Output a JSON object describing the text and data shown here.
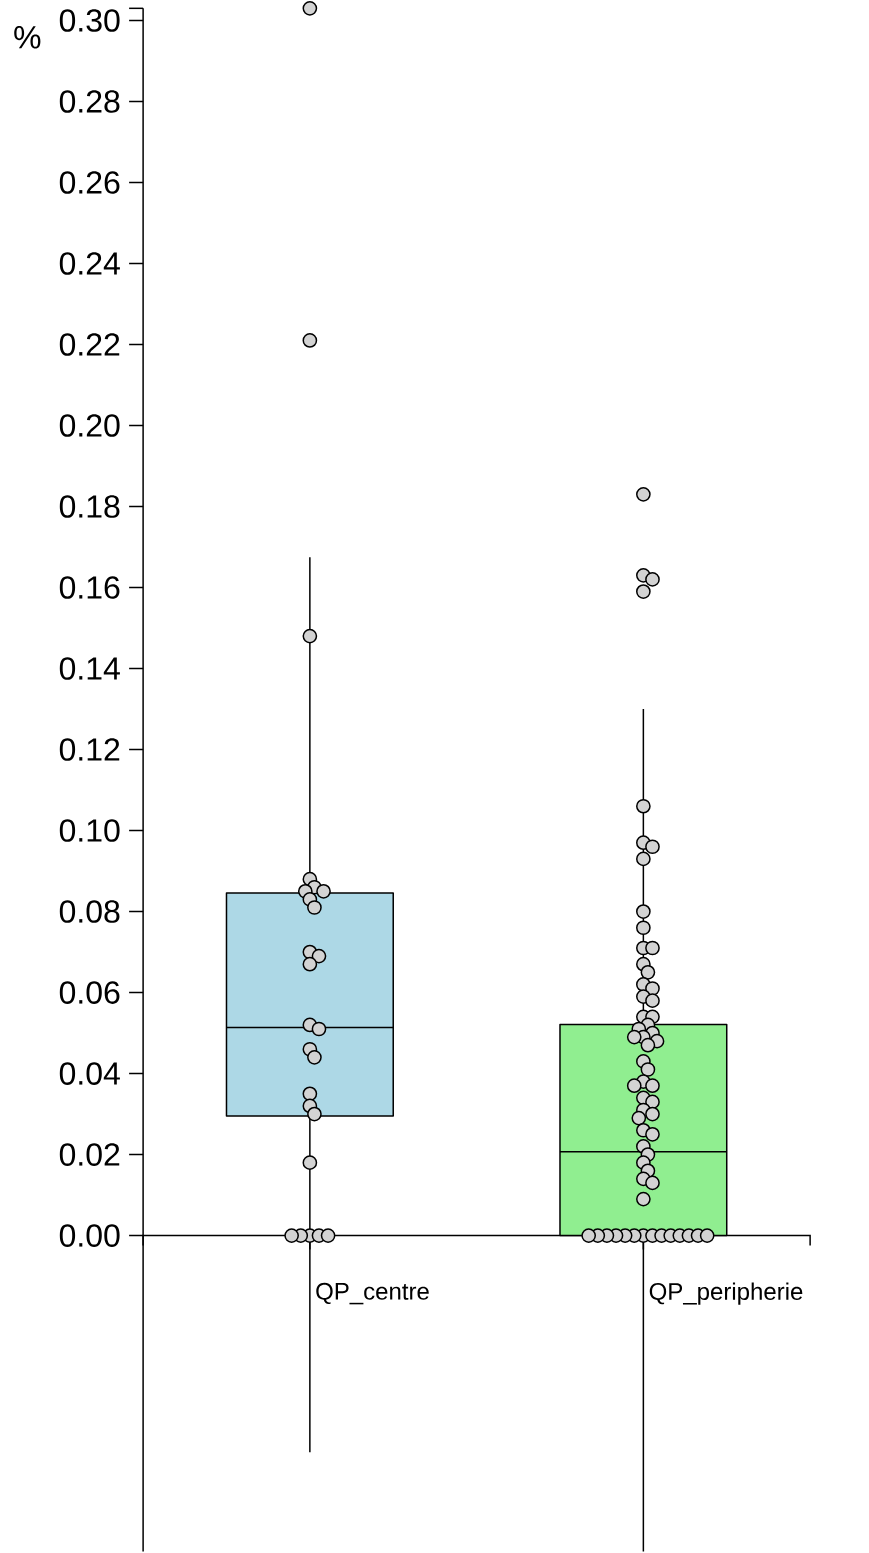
{
  "chart_data": {
    "type": "box",
    "ylabel": "%",
    "categories": [
      "QP_centre",
      "QP_peripherie"
    ],
    "colors": [
      "#add8e6",
      "#90ee90"
    ],
    "boxes": [
      {
        "low": -0.0535,
        "q1": 0.0295,
        "median": 0.0514,
        "q3": 0.0846,
        "high": 0.1675
      },
      {
        "low": -0.078,
        "q1": 0,
        "median": 0.0207,
        "q3": 0.0521,
        "high": 0.13
      }
    ],
    "series": [
      {
        "type": "scatter",
        "color": "#d3d3d3",
        "x": [
          "QP_centre",
          "QP_centre",
          "QP_centre",
          "QP_centre",
          "QP_centre",
          "QP_centre",
          "QP_centre",
          "QP_centre",
          "QP_centre",
          "QP_centre",
          "QP_centre",
          "QP_centre",
          "QP_centre",
          "QP_centre",
          "QP_centre",
          "QP_centre",
          "QP_centre",
          "QP_centre",
          "QP_centre",
          "QP_centre",
          "QP_centre",
          "QP_centre",
          "QP_centre",
          "QP_centre",
          "QP_centre",
          "QP_peripherie",
          "QP_peripherie",
          "QP_peripherie",
          "QP_peripherie",
          "QP_peripherie",
          "QP_peripherie",
          "QP_peripherie",
          "QP_peripherie",
          "QP_peripherie",
          "QP_peripherie",
          "QP_peripherie",
          "QP_peripherie",
          "QP_peripherie",
          "QP_peripherie",
          "QP_peripherie",
          "QP_peripherie",
          "QP_peripherie",
          "QP_peripherie",
          "QP_peripherie",
          "QP_peripherie",
          "QP_peripherie",
          "QP_peripherie",
          "QP_peripherie",
          "QP_peripherie",
          "QP_peripherie",
          "QP_peripherie",
          "QP_peripherie",
          "QP_peripherie",
          "QP_peripherie",
          "QP_peripherie",
          "QP_peripherie",
          "QP_peripherie",
          "QP_peripherie",
          "QP_peripherie",
          "QP_peripherie",
          "QP_peripherie",
          "QP_peripherie",
          "QP_peripherie",
          "QP_peripherie",
          "QP_peripherie",
          "QP_peripherie",
          "QP_peripherie",
          "QP_peripherie",
          "QP_peripherie",
          "QP_peripherie",
          "QP_peripherie",
          "QP_peripherie",
          "QP_peripherie",
          "QP_peripherie",
          "QP_peripherie",
          "QP_peripherie",
          "QP_peripherie",
          "QP_peripherie",
          "QP_peripherie",
          "QP_peripherie",
          "QP_peripherie",
          "QP_peripherie",
          "QP_peripherie",
          "QP_peripherie",
          "QP_peripherie"
        ],
        "values": [
          0.303,
          0.221,
          0.148,
          0.088,
          0.086,
          0.085,
          0.085,
          0.083,
          0.081,
          0.07,
          0.069,
          0.067,
          0.052,
          0.051,
          0.046,
          0.044,
          0.035,
          0.032,
          0.03,
          0.018,
          0,
          0,
          0,
          0,
          0,
          0.183,
          0.163,
          0.162,
          0.159,
          0.106,
          0.097,
          0.096,
          0.093,
          0.08,
          0.076,
          0.071,
          0.071,
          0.067,
          0.065,
          0.062,
          0.061,
          0.059,
          0.058,
          0.054,
          0.054,
          0.052,
          0.051,
          0.05,
          0.049,
          0.049,
          0.048,
          0.047,
          0.043,
          0.041,
          0.038,
          0.037,
          0.037,
          0.034,
          0.033,
          0.031,
          0.03,
          0.029,
          0.026,
          0.025,
          0.022,
          0.02,
          0.018,
          0.016,
          0.014,
          0.013,
          0.009,
          0,
          0,
          0,
          0,
          0,
          0,
          0,
          0,
          0,
          0,
          0,
          0,
          0,
          0
        ]
      }
    ],
    "marker": "circle",
    "ylim": [
      -0.078,
      0.303
    ],
    "yticks": [
      {
        "value": 0,
        "label": "0.00"
      },
      {
        "value": 0.02,
        "label": "0.02"
      },
      {
        "value": 0.04,
        "label": "0.04"
      },
      {
        "value": 0.06,
        "label": "0.06"
      },
      {
        "value": 0.08,
        "label": "0.08"
      },
      {
        "value": 0.1,
        "label": "0.10"
      },
      {
        "value": 0.12,
        "label": "0.12"
      },
      {
        "value": 0.14,
        "label": "0.14"
      },
      {
        "value": 0.16,
        "label": "0.16"
      },
      {
        "value": 0.18,
        "label": "0.18"
      },
      {
        "value": 0.2,
        "label": "0.20"
      },
      {
        "value": 0.22,
        "label": "0.22"
      },
      {
        "value": 0.24,
        "label": "0.24"
      },
      {
        "value": 0.26,
        "label": "0.26"
      },
      {
        "value": 0.28,
        "label": "0.28"
      },
      {
        "value": 0.3,
        "label": "0.30"
      }
    ]
  }
}
